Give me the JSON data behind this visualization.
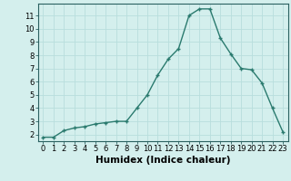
{
  "x": [
    0,
    1,
    2,
    3,
    4,
    5,
    6,
    7,
    8,
    9,
    10,
    11,
    12,
    13,
    14,
    15,
    16,
    17,
    18,
    19,
    20,
    21,
    22,
    23
  ],
  "y": [
    1.8,
    1.8,
    2.3,
    2.5,
    2.6,
    2.8,
    2.9,
    3.0,
    3.0,
    4.0,
    5.0,
    6.5,
    7.7,
    8.5,
    11.0,
    11.5,
    11.5,
    9.3,
    8.1,
    7.0,
    6.9,
    5.9,
    4.0,
    2.2
  ],
  "line_color": "#2a7a6e",
  "marker": "+",
  "marker_size": 3,
  "bg_color": "#d4efed",
  "grid_color": "#b8dedd",
  "xlabel": "Humidex (Indice chaleur)",
  "xlabel_fontsize": 7.5,
  "ylabel_ticks": [
    2,
    3,
    4,
    5,
    6,
    7,
    8,
    9,
    10,
    11
  ],
  "xlim": [
    -0.5,
    23.5
  ],
  "ylim": [
    1.5,
    11.9
  ],
  "xticks": [
    0,
    1,
    2,
    3,
    4,
    5,
    6,
    7,
    8,
    9,
    10,
    11,
    12,
    13,
    14,
    15,
    16,
    17,
    18,
    19,
    20,
    21,
    22,
    23
  ],
  "xtick_labels": [
    "0",
    "1",
    "2",
    "3",
    "4",
    "5",
    "6",
    "7",
    "8",
    "9",
    "10",
    "11",
    "12",
    "13",
    "14",
    "15",
    "16",
    "17",
    "18",
    "19",
    "20",
    "21",
    "22",
    "23"
  ],
  "tick_fontsize": 6,
  "line_width": 1.0,
  "axis_color": "#2a6060",
  "marker_edge_width": 1.0
}
